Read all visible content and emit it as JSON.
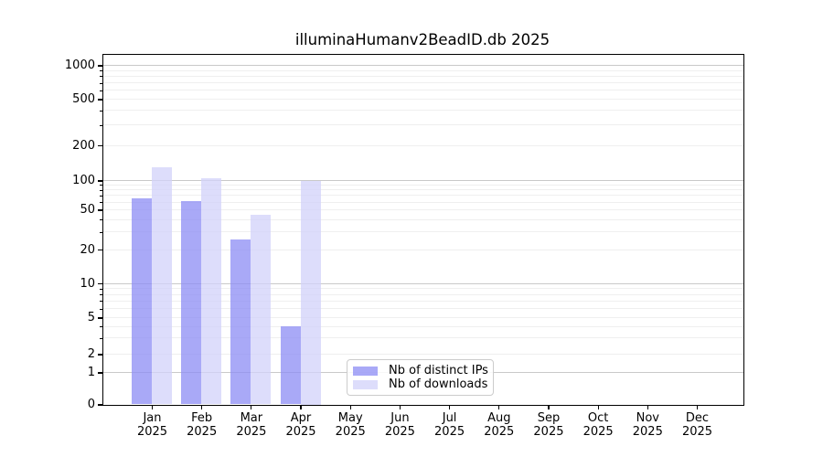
{
  "chart_data": {
    "type": "bar",
    "title": "illuminaHumanv2BeadID.db 2025",
    "x_axis": {
      "categories": [
        "Jan",
        "Feb",
        "Mar",
        "Apr",
        "May",
        "Jun",
        "Jul",
        "Aug",
        "Sep",
        "Oct",
        "Nov",
        "Dec"
      ],
      "year": "2025"
    },
    "y_axis": {
      "scale": "asinh-log (log-like above 1, linear 0-1)",
      "ticks": [
        1000,
        500,
        200,
        100,
        50,
        20,
        10,
        5,
        2,
        1,
        0
      ],
      "ylim": [
        0,
        1200
      ]
    },
    "series": [
      {
        "name": "Nb of distinct IPs",
        "color": "#8c8cf4",
        "fill_alpha": 0.75,
        "values": [
          66,
          62,
          25,
          4,
          0,
          0,
          0,
          0,
          0,
          0,
          0,
          0
        ]
      },
      {
        "name": "Nb of downloads",
        "color": "#d2d2fa",
        "fill_alpha": 0.75,
        "values": [
          130,
          105,
          45,
          100,
          0,
          0,
          0,
          0,
          0,
          0,
          0,
          0
        ]
      }
    ],
    "legend_position": "bottom-center",
    "grid": {
      "major_color": "#c9c9c9",
      "minor_color": "#efefef"
    }
  },
  "colors": {
    "background": "#ffffff",
    "spine": "#000000",
    "text": "#000000"
  }
}
